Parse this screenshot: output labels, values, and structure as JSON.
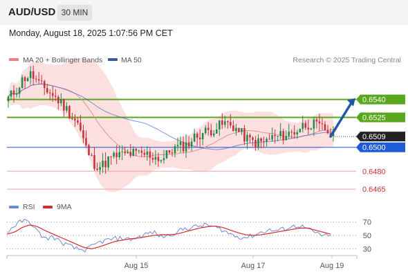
{
  "header": {
    "pair": "AUD/USD",
    "timeframe": "30 MIN"
  },
  "timestamp": "Monday, August 18, 2025 1:07:56 PM CET",
  "legend": {
    "bollinger": {
      "label": "MA 20 + Bollinger Bands",
      "color": "#f08080"
    },
    "ma50": {
      "label": "MA 50",
      "color": "#3a5a9c"
    }
  },
  "credit": "Research © 2025 Trading Central",
  "colors": {
    "up_candle": "#1e8b4a",
    "down_candle": "#c8323c",
    "band_fill": "#fcd9d9",
    "resistance": "#5aa820",
    "support_line": "#2255cc",
    "support_label": "#1e5bd7",
    "current_label": "#222222",
    "pivot_line": "#f4a3a3",
    "arrow": "#1e5aa8",
    "rsi": "#6a8ad8",
    "rsi_ma": "#d82a2a"
  },
  "chart_data": {
    "type": "candlestick",
    "x_ticks": [
      "Aug 15",
      "Aug 17",
      "Aug 19"
    ],
    "ylim": [
      0.6457,
      0.6578
    ],
    "current_price": {
      "value": 0.6509,
      "label": "0.6509"
    },
    "levels": [
      {
        "value": 0.654,
        "label": "0.6540",
        "kind": "resistance"
      },
      {
        "value": 0.6525,
        "label": "0.6525",
        "kind": "resistance"
      },
      {
        "value": 0.65,
        "label": "0.6500",
        "kind": "support"
      },
      {
        "value": 0.648,
        "label": "0.6480",
        "kind": "pivot"
      },
      {
        "value": 0.6465,
        "label": "0.6465",
        "kind": "pivot"
      }
    ],
    "projection": {
      "from": 0.6509,
      "to": 0.654,
      "direction": "up"
    },
    "price_path": [
      0.6541,
      0.6548,
      0.6558,
      0.6561,
      0.6552,
      0.6548,
      0.6542,
      0.6536,
      0.6528,
      0.652,
      0.65,
      0.6487,
      0.6484,
      0.649,
      0.6493,
      0.6494,
      0.6495,
      0.6494,
      0.6494,
      0.6492,
      0.649,
      0.6498,
      0.65,
      0.6502,
      0.6508,
      0.6512,
      0.6514,
      0.6517,
      0.652,
      0.6518,
      0.6512,
      0.6506,
      0.6504,
      0.6504,
      0.6508,
      0.6509,
      0.6511,
      0.6513,
      0.6518,
      0.652,
      0.6517,
      0.6515,
      0.6509
    ],
    "rsi": {
      "legend": [
        {
          "name": "RSI"
        },
        {
          "name": "9MA"
        }
      ],
      "levels": [
        70,
        50,
        30
      ],
      "ylim": [
        20,
        80
      ],
      "rsi_path": [
        55,
        65,
        72,
        70,
        55,
        45,
        48,
        40,
        35,
        30,
        28,
        33,
        40,
        43,
        45,
        46,
        44,
        47,
        52,
        55,
        48,
        50,
        55,
        60,
        62,
        64,
        66,
        62,
        58,
        52,
        48,
        47,
        50,
        55,
        58,
        57,
        60,
        63,
        65,
        60,
        54,
        50,
        48
      ],
      "ma_path": [
        52,
        55,
        62,
        66,
        63,
        57,
        52,
        47,
        42,
        37,
        32,
        30,
        33,
        37,
        41,
        43,
        45,
        46,
        48,
        50,
        51,
        51,
        52,
        55,
        58,
        61,
        63,
        64,
        62,
        58,
        54,
        51,
        50,
        51,
        53,
        55,
        57,
        59,
        61,
        61,
        58,
        55,
        52
      ]
    }
  }
}
